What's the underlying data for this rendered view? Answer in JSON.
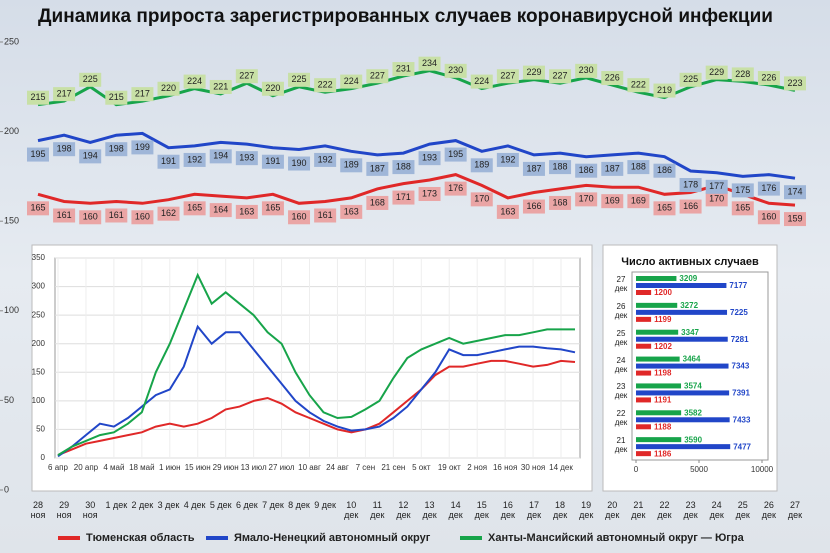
{
  "chart_data": [
    {
      "type": "line",
      "title": "Динамика прироста зарегистрированных случаев коронавирусной инфекции",
      "categories": [
        "28 ноя",
        "29 ноя",
        "30 ноя",
        "1 дек",
        "2 дек",
        "3 дек",
        "4 дек",
        "5 дек",
        "6 дек",
        "7 дек",
        "8 дек",
        "9 дек",
        "10 дек",
        "11 дек",
        "12 дек",
        "13 дек",
        "14 дек",
        "15 дек",
        "16 дек",
        "17 дек",
        "18 дек",
        "19 дек",
        "20 дек",
        "21 дек",
        "22 дек",
        "23 дек",
        "24 дек",
        "25 дек",
        "26 дек",
        "27 дек"
      ],
      "ylim": [
        0,
        250
      ],
      "yticks": [
        0,
        50,
        100,
        150,
        200,
        250
      ],
      "series": [
        {
          "name": "Тюменская область",
          "color": "#e02828",
          "label_color": "#eaa5a5",
          "values": [
            165,
            161,
            160,
            161,
            160,
            162,
            165,
            164,
            163,
            165,
            160,
            161,
            163,
            168,
            171,
            173,
            176,
            170,
            163,
            166,
            168,
            170,
            169,
            169,
            165,
            166,
            170,
            165,
            160,
            159
          ]
        },
        {
          "name": "Ямало-Ненецкий автономный округ",
          "color": "#2146c8",
          "label_color": "#9fb6d8",
          "values": [
            195,
            198,
            194,
            198,
            199,
            191,
            192,
            194,
            193,
            191,
            190,
            192,
            189,
            187,
            188,
            193,
            195,
            189,
            192,
            187,
            188,
            186,
            187,
            188,
            186,
            178,
            177,
            175,
            176,
            174
          ]
        },
        {
          "name": "Ханты-Мансийский автономный округ — Югра",
          "color": "#17a44a",
          "label_color": "#c8e0a6",
          "values": [
            215,
            217,
            225,
            215,
            217,
            220,
            224,
            221,
            227,
            220,
            225,
            222,
            224,
            227,
            231,
            234,
            230,
            224,
            227,
            229,
            227,
            230,
            226,
            222,
            219,
            225,
            229,
            228,
            226,
            223
          ]
        }
      ]
    },
    {
      "type": "line",
      "categories": [
        "6 апр",
        null,
        "20 апр",
        null,
        "4 май",
        null,
        "18 май",
        null,
        "1 июн",
        null,
        "15 июн",
        null,
        "29 июн",
        null,
        "13 июл",
        null,
        "27 июл",
        null,
        "10 авг",
        null,
        "24 авг",
        null,
        "7 сен",
        null,
        "21 сен",
        null,
        "5 окт",
        null,
        "19 окт",
        null,
        "2 ноя",
        null,
        "16 ноя",
        null,
        "30 ноя",
        null,
        "14 дек",
        null
      ],
      "ylim": [
        0,
        350
      ],
      "yticks": [
        0,
        50,
        100,
        150,
        200,
        250,
        300,
        350
      ],
      "grid": true,
      "series": [
        {
          "color": "#e02828",
          "values": [
            5,
            15,
            25,
            30,
            35,
            40,
            45,
            55,
            60,
            55,
            60,
            70,
            85,
            90,
            100,
            105,
            95,
            80,
            70,
            60,
            50,
            45,
            50,
            60,
            80,
            100,
            120,
            145,
            160,
            160,
            165,
            170,
            170,
            165,
            160,
            163,
            170,
            168
          ]
        },
        {
          "color": "#2146c8",
          "values": [
            3,
            20,
            40,
            60,
            55,
            70,
            90,
            110,
            120,
            160,
            230,
            200,
            220,
            220,
            190,
            160,
            130,
            100,
            80,
            65,
            55,
            48,
            50,
            55,
            70,
            90,
            120,
            150,
            190,
            180,
            180,
            185,
            190,
            195,
            195,
            192,
            190,
            185
          ]
        },
        {
          "color": "#17a44a",
          "values": [
            5,
            20,
            30,
            40,
            45,
            60,
            80,
            150,
            200,
            260,
            320,
            270,
            290,
            270,
            250,
            220,
            200,
            150,
            110,
            80,
            70,
            72,
            85,
            100,
            140,
            175,
            190,
            200,
            210,
            200,
            205,
            210,
            215,
            215,
            220,
            225,
            225,
            225
          ]
        }
      ]
    },
    {
      "type": "barh",
      "title": "Число активных случаев",
      "categories": [
        "21 дек",
        "22 дек",
        "23 дек",
        "24 дек",
        "25 дек",
        "26 дек",
        "27 дек"
      ],
      "xlim": [
        0,
        10000
      ],
      "xticks": [
        0,
        5000,
        10000
      ],
      "series": [
        {
          "color": "#17a44a",
          "values": [
            3590,
            3582,
            3574,
            3464,
            3347,
            3272,
            3209
          ]
        },
        {
          "color": "#2146c8",
          "values": [
            7477,
            7433,
            7391,
            7343,
            7281,
            7225,
            7177
          ]
        },
        {
          "color": "#e02828",
          "values": [
            1186,
            1188,
            1191,
            1198,
            1202,
            1199,
            1200
          ]
        }
      ]
    }
  ]
}
